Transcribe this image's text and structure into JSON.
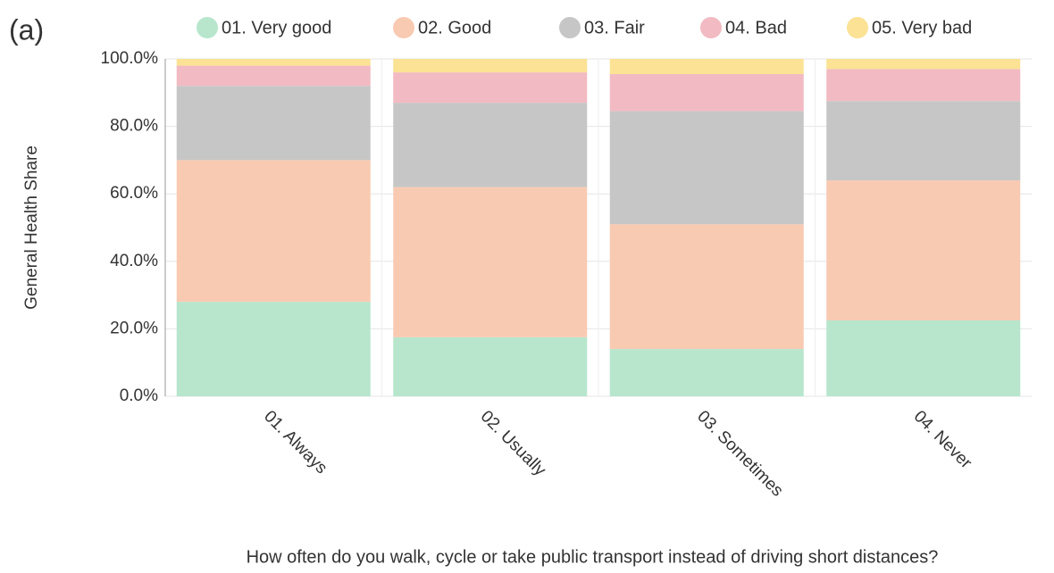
{
  "panel_label": "(a)",
  "chart_data": {
    "type": "stacked_bar",
    "x_label": "How often do you walk, cycle or take public transport instead of driving short distances?",
    "y_label": "General Health Share",
    "categories": [
      "01. Always",
      "02. Usually",
      "03. Sometimes",
      "04. Never"
    ],
    "series": [
      {
        "name": "01. Very good",
        "color": "#b7e6cd",
        "values": [
          28,
          17.5,
          14,
          22.5
        ]
      },
      {
        "name": "02. Good",
        "color": "#f9cab2",
        "values": [
          42,
          44.5,
          37,
          41.5
        ]
      },
      {
        "name": "03. Fair",
        "color": "#c6c6c6",
        "values": [
          22,
          25,
          33.5,
          23.5
        ]
      },
      {
        "name": "04. Bad",
        "color": "#f2bac2",
        "values": [
          6,
          9,
          11,
          9.5
        ]
      },
      {
        "name": "05. Very bad",
        "color": "#fbe294",
        "values": [
          2,
          4,
          4.5,
          3
        ]
      }
    ],
    "ylim": [
      0,
      100
    ],
    "yticks": [
      {
        "value": 0,
        "label": "0.0%"
      },
      {
        "value": 20,
        "label": "20.0%"
      },
      {
        "value": 40,
        "label": "40.0%"
      },
      {
        "value": 60,
        "label": "60.0%"
      },
      {
        "value": 80,
        "label": "80.0%"
      },
      {
        "value": 100,
        "label": "100.0%"
      }
    ],
    "grid": true,
    "legend": "top"
  }
}
